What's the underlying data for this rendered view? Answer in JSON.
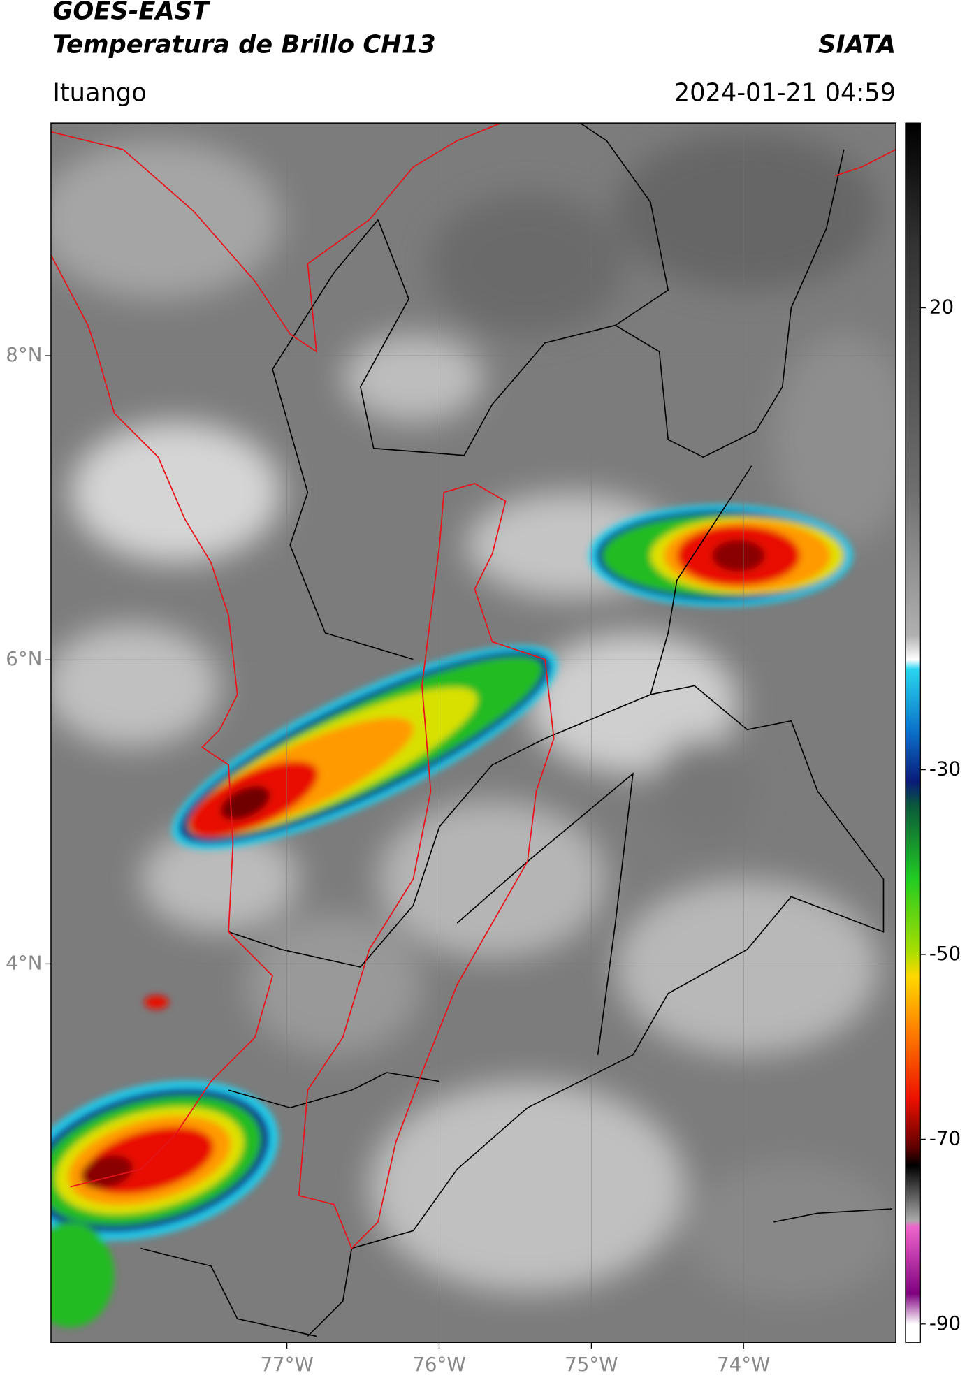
{
  "header": {
    "title_line1": "GOES-EAST",
    "title_line2": "Temperatura de Brillo CH13",
    "agency": "SIATA",
    "location": "Ituango",
    "datetime": "2024-01-21 04:59"
  },
  "map": {
    "lonlim": [
      -78.55,
      -73.0
    ],
    "latlim": [
      1.51,
      9.53
    ],
    "grid": true,
    "lon_ticks": [
      {
        "value": -77,
        "label": "77°W"
      },
      {
        "value": -76,
        "label": "76°W"
      },
      {
        "value": -75,
        "label": "75°W"
      },
      {
        "value": -74,
        "label": "74°W"
      }
    ],
    "lat_ticks": [
      {
        "value": 8,
        "label": "8°N"
      },
      {
        "value": 6,
        "label": "6°N"
      },
      {
        "value": 4,
        "label": "4°N"
      }
    ]
  },
  "colorbar": {
    "lim": [
      -92,
      40
    ],
    "ticks": [
      20,
      -30,
      -50,
      -70,
      -90
    ]
  }
}
